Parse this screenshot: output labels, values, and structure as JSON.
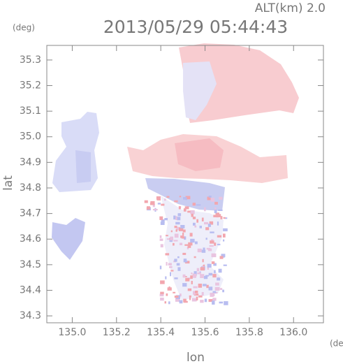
{
  "chart_data": {
    "type": "radar-map",
    "title": "2013/05/29 05:44:43",
    "subtitle": "ALT(km) 2.0",
    "x_label": "lon",
    "y_label": "lat",
    "x_unit": "(deg)",
    "y_unit": "(deg)",
    "xlim": [
      134.885,
      136.135
    ],
    "ylim": [
      34.273,
      35.357
    ],
    "xticks": [
      {
        "value": 135,
        "label": "135.0"
      },
      135.2,
      135.4,
      135.6,
      135.8,
      {
        "value": 136,
        "label": "136.0"
      }
    ],
    "yticks": [
      34.3,
      34.4,
      34.5,
      34.6,
      34.7,
      34.8,
      34.9,
      {
        "value": 35,
        "label": "35.0"
      },
      35.1,
      35.2,
      35.3
    ]
  }
}
